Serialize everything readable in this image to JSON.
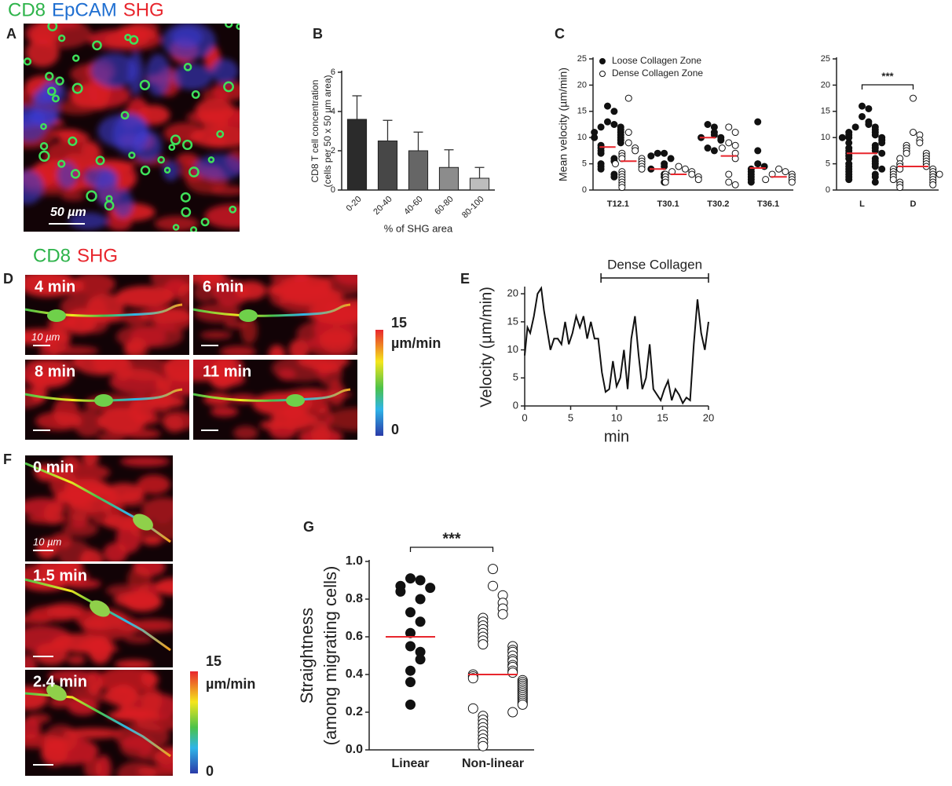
{
  "figure": {
    "panel_labels": [
      "A",
      "B",
      "C",
      "D",
      "E",
      "F",
      "G"
    ],
    "panel_a": {
      "legend": [
        {
          "text": "CD8",
          "color": "#2db34a"
        },
        {
          "text": "EpCAM",
          "color": "#1f6fd1"
        },
        {
          "text": "SHG",
          "color": "#e8262d"
        }
      ],
      "scale_bar": "50 µm"
    },
    "panel_d": {
      "legend": [
        {
          "text": "CD8",
          "color": "#2db34a"
        },
        {
          "text": "SHG",
          "color": "#e8262d"
        }
      ],
      "frames": [
        "4 min",
        "6 min",
        "8 min",
        "11 min"
      ],
      "scale_bar": "10 µm",
      "colorbar": {
        "max": "15",
        "unit": "µm/min",
        "min": "0"
      }
    },
    "panel_f": {
      "frames": [
        "0 min",
        "1.5 min",
        "2.4 min"
      ],
      "scale_bar": "10 µm",
      "colorbar": {
        "max": "15",
        "unit": "µm/min",
        "min": "0"
      }
    }
  },
  "chart_data": [
    {
      "type": "bar",
      "categories": [
        "0-20",
        "20-40",
        "40-60",
        "60-80",
        "80-100"
      ],
      "values": [
        3.6,
        2.5,
        2.0,
        1.15,
        0.6
      ],
      "errors": [
        1.2,
        1.05,
        0.95,
        0.9,
        0.55
      ],
      "colors": [
        "#2b2b2b",
        "#474747",
        "#666666",
        "#8c8c8c",
        "#bdbdbd"
      ],
      "ylim": [
        0,
        6
      ],
      "yticks": [
        0,
        2,
        4,
        6
      ],
      "ylabel": [
        "CD8 T cell concentration",
        "(cells per 50 x 50 µm area)"
      ],
      "xlabel": "% of SHG area"
    },
    {
      "type": "dotplot",
      "categories": [
        "T12.1",
        "T30.1",
        "T30.2",
        "T36.1"
      ],
      "ylim": [
        0,
        25
      ],
      "yticks": [
        0,
        5,
        10,
        15,
        20,
        25
      ],
      "ylabel": [
        "Mean velocity (µm/min)"
      ],
      "mean_color": "#e8262d",
      "series": [
        {
          "name": "Loose Collagen Zone",
          "filled": true,
          "values": [
            [
              16,
              15,
              13,
              12.5,
              12,
              12,
              11.5,
              11,
              11,
              10.5,
              10,
              10,
              9.5,
              9,
              8.5,
              8,
              7.5,
              7,
              6,
              5.5,
              5,
              4.5,
              4,
              3,
              2.5
            ],
            [
              7,
              7,
              6.5,
              6,
              5,
              4.5,
              4,
              3,
              2.5,
              1.5
            ],
            [
              12.5,
              12,
              11,
              10.5,
              10,
              10,
              9.5,
              8,
              7.5
            ],
            [
              13,
              7.5,
              5,
              4.5,
              4,
              3.5,
              3,
              2.5,
              2,
              1.5
            ]
          ],
          "means": [
            8.2,
            4.0,
            10.0,
            4.2
          ]
        },
        {
          "name": "Dense Collagen Zone",
          "filled": false,
          "values": [
            [
              17.5,
              11,
              9,
              8,
              7.5,
              7,
              6.5,
              6,
              6,
              5.5,
              5,
              5,
              4.5,
              4,
              3.5,
              3,
              2.5,
              2,
              1.5,
              1,
              0.5
            ],
            [
              4.5,
              4,
              3.5,
              3.5,
              3,
              3,
              2.5,
              2.5,
              2,
              2,
              1.5
            ],
            [
              12,
              11,
              9,
              8.5,
              8,
              7,
              6,
              3,
              1.5,
              1
            ],
            [
              4,
              3.5,
              3,
              3,
              2.5,
              2,
              2,
              1.5
            ]
          ],
          "means": [
            5.5,
            3.0,
            6.5,
            2.5
          ]
        }
      ]
    },
    {
      "type": "dotplot",
      "categories": [
        "L",
        "D"
      ],
      "ylim": [
        0,
        25
      ],
      "yticks": [
        0,
        5,
        10,
        15,
        20,
        25
      ],
      "annotation": "***",
      "mean_color": "#e8262d",
      "filled": [
        true,
        false
      ],
      "values": [
        [
          16,
          15.5,
          14,
          13,
          12.5,
          12,
          12,
          11.5,
          11,
          11,
          10.5,
          10.5,
          10,
          10,
          10,
          9.5,
          9,
          9,
          8.5,
          8,
          8,
          7.5,
          7.5,
          7,
          7,
          6.5,
          6,
          6,
          5.5,
          5,
          5,
          4.5,
          4.5,
          4,
          4,
          3.5,
          3,
          3,
          2.5,
          2.5,
          2,
          1.5
        ],
        [
          17.5,
          11,
          10.5,
          9.5,
          9,
          8.5,
          8,
          7.5,
          7,
          7,
          6.5,
          6,
          6,
          5.5,
          5,
          5,
          4.5,
          4.5,
          4,
          4,
          4,
          3.5,
          3.5,
          3,
          3,
          3,
          2.5,
          2.5,
          2,
          2,
          1.5,
          1.5,
          1,
          1,
          0.5
        ]
      ],
      "means": [
        7.0,
        4.5
      ]
    },
    {
      "type": "line",
      "color": "#111111",
      "xlim": [
        0,
        20
      ],
      "xticks": [
        0,
        5,
        10,
        15,
        20
      ],
      "ylim": [
        0,
        21
      ],
      "yticks": [
        0,
        5,
        10,
        15,
        20
      ],
      "ylabel": [
        "Velocity (µm/min)"
      ],
      "xlabel": "min",
      "bracket": {
        "label": "Dense Collagen",
        "start": 8.3,
        "end": 20
      },
      "x": [
        0,
        0.3,
        0.6,
        1,
        1.4,
        1.8,
        2.1,
        2.5,
        2.8,
        3.2,
        3.6,
        4,
        4.4,
        4.8,
        5.2,
        5.6,
        6,
        6.4,
        6.8,
        7.2,
        7.6,
        8,
        8.4,
        8.8,
        9.2,
        9.6,
        10,
        10.4,
        10.8,
        11.2,
        11.6,
        12,
        12.4,
        12.8,
        13.2,
        13.6,
        14,
        14.4,
        14.8,
        15.2,
        15.6,
        16,
        16.4,
        16.8,
        17.2,
        17.6,
        18,
        18.4,
        18.8,
        19.2,
        19.6,
        20
      ],
      "values": [
        9,
        14,
        13,
        16,
        20,
        21,
        17,
        13,
        10,
        12,
        12,
        11,
        15,
        11,
        13,
        16,
        14,
        16,
        12,
        15,
        12,
        12,
        6,
        2.5,
        3,
        8,
        3.5,
        5,
        10,
        3,
        12,
        16,
        9,
        3,
        5,
        11,
        3,
        2,
        1,
        3,
        4.5,
        1,
        3,
        2,
        0.5,
        1.5,
        1,
        11,
        19,
        13,
        10,
        15
      ]
    },
    {
      "type": "dotplot",
      "categories": [
        "Linear",
        "Non-linear"
      ],
      "ylim": [
        0,
        1
      ],
      "yticks": [
        {
          "value": 0,
          "label": "0.0"
        },
        0.2,
        0.4,
        0.6,
        0.8,
        {
          "value": 1,
          "label": "1.0"
        }
      ],
      "ylabel": [
        "Straightness",
        "(among migrating cells)"
      ],
      "annotation": "***",
      "mean_color": "#e8262d",
      "filled": [
        true,
        false
      ],
      "values": [
        [
          0.91,
          0.9,
          0.87,
          0.86,
          0.84,
          0.8,
          0.73,
          0.68,
          0.62,
          0.55,
          0.52,
          0.48,
          0.42,
          0.36,
          0.24
        ],
        [
          0.96,
          0.87,
          0.82,
          0.78,
          0.75,
          0.72,
          0.7,
          0.68,
          0.66,
          0.64,
          0.62,
          0.6,
          0.58,
          0.56,
          0.55,
          0.53,
          0.52,
          0.5,
          0.48,
          0.47,
          0.45,
          0.44,
          0.42,
          0.41,
          0.4,
          0.39,
          0.38,
          0.37,
          0.36,
          0.35,
          0.34,
          0.33,
          0.32,
          0.31,
          0.3,
          0.29,
          0.28,
          0.27,
          0.26,
          0.25,
          0.24,
          0.22,
          0.2,
          0.18,
          0.16,
          0.14,
          0.12,
          0.1,
          0.08,
          0.06,
          0.04,
          0.02
        ]
      ],
      "means": [
        0.6,
        0.4
      ]
    }
  ]
}
